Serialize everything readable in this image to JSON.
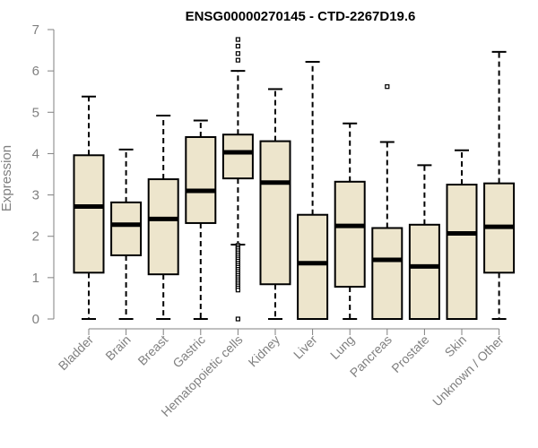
{
  "chart_data": {
    "type": "boxplot",
    "title": "ENSG00000270145 - CTD-2267D19.6",
    "xlabel": "",
    "ylabel": "Expression",
    "ylim": [
      0,
      7
    ],
    "yticks": [
      0,
      1,
      2,
      3,
      4,
      5,
      6,
      7
    ],
    "grid": false,
    "legend": "none",
    "colors": {
      "box_fill": "#ede5cc",
      "box_stroke": "#000000",
      "axis": "#808080"
    },
    "categories": [
      "Bladder",
      "Brain",
      "Breast",
      "Gastric",
      "Hematopoietic cells",
      "Kidney",
      "Liver",
      "Lung",
      "Pancreas",
      "Prostate",
      "Skin",
      "Unknown / Other"
    ],
    "boxes": [
      {
        "min": 0,
        "q1": 1.12,
        "median": 2.72,
        "q3": 3.96,
        "max": 5.38,
        "outliers": []
      },
      {
        "min": 0,
        "q1": 1.54,
        "median": 2.28,
        "q3": 2.82,
        "max": 4.1,
        "outliers": []
      },
      {
        "min": 0,
        "q1": 1.08,
        "median": 2.42,
        "q3": 3.38,
        "max": 4.92,
        "outliers": []
      },
      {
        "min": 0,
        "q1": 2.32,
        "median": 3.1,
        "q3": 4.4,
        "max": 4.8,
        "outliers": []
      },
      {
        "min": 1.8,
        "q1": 3.4,
        "median": 4.03,
        "q3": 4.46,
        "max": 6.0,
        "outliers": [
          6.76,
          6.6,
          6.42,
          6.26,
          1.78,
          1.74,
          1.7,
          1.65,
          1.6,
          1.55,
          1.5,
          1.45,
          1.4,
          1.35,
          1.3,
          1.25,
          1.2,
          1.15,
          1.1,
          1.05,
          1.0,
          0.95,
          0.9,
          0.85,
          0.8,
          0.75,
          0.7,
          0
        ]
      },
      {
        "min": 0,
        "q1": 0.84,
        "median": 3.3,
        "q3": 4.3,
        "max": 5.56,
        "outliers": []
      },
      {
        "min": 0,
        "q1": 0,
        "median": 1.35,
        "q3": 2.52,
        "max": 6.22,
        "outliers": []
      },
      {
        "min": 0,
        "q1": 0.78,
        "median": 2.25,
        "q3": 3.32,
        "max": 4.73,
        "outliers": []
      },
      {
        "min": 0,
        "q1": 0,
        "median": 1.43,
        "q3": 2.2,
        "max": 4.28,
        "outliers": [
          5.62
        ]
      },
      {
        "min": 0,
        "q1": 0,
        "median": 1.27,
        "q3": 2.28,
        "max": 3.72,
        "outliers": []
      },
      {
        "min": 0,
        "q1": 0,
        "median": 2.07,
        "q3": 3.25,
        "max": 4.08,
        "outliers": []
      },
      {
        "min": 0,
        "q1": 1.12,
        "median": 2.23,
        "q3": 3.28,
        "max": 6.46,
        "outliers": []
      }
    ]
  }
}
